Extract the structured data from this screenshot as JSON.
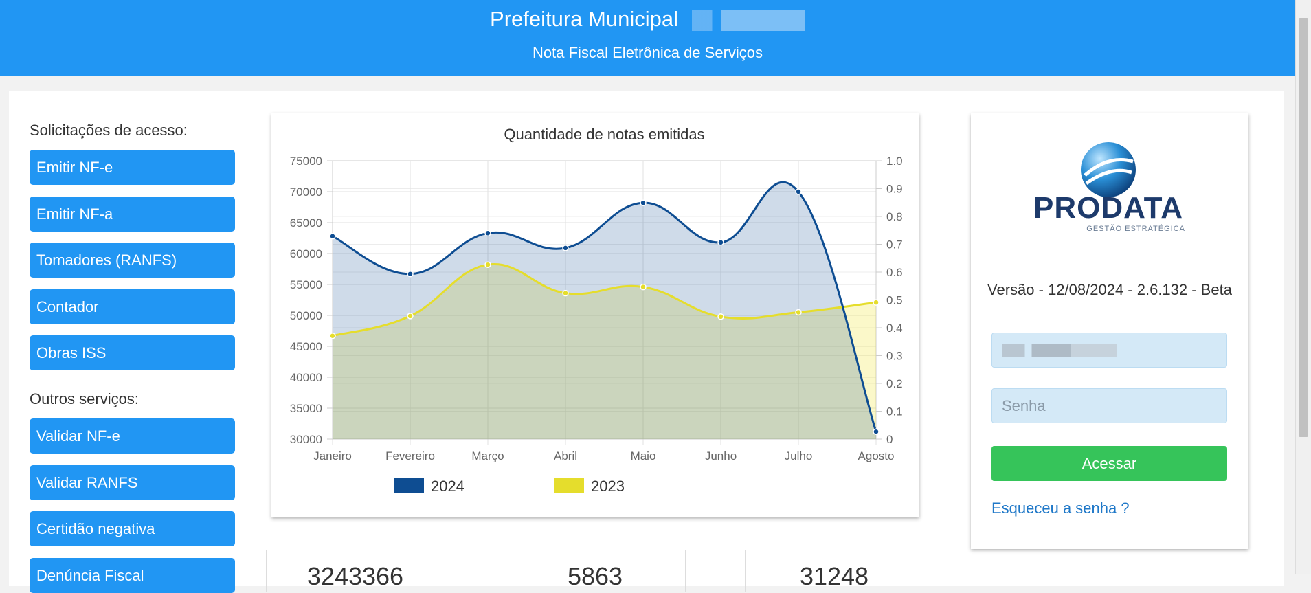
{
  "header": {
    "title": "Prefeitura Municipal",
    "subtitle": "Nota Fiscal Eletrônica de Serviços"
  },
  "menu": {
    "sections": [
      {
        "title": "Solicitações de acesso:",
        "items": [
          "Emitir NF-e",
          "Emitir NF-a",
          "Tomadores (RANFS)",
          "Contador",
          "Obras ISS"
        ]
      },
      {
        "title": "Outros serviços:",
        "items": [
          "Validar NF-e",
          "Validar RANFS",
          "Certidão negativa",
          "Denúncia Fiscal"
        ]
      }
    ]
  },
  "chart_data": {
    "type": "line",
    "title": "Quantidade de notas emitidas",
    "categories": [
      "Janeiro",
      "Fevereiro",
      "Março",
      "Abril",
      "Maio",
      "Junho",
      "Julho",
      "Agosto"
    ],
    "series": [
      {
        "name": "2024",
        "color": "#0e4d92",
        "values": [
          62800,
          56700,
          63300,
          60900,
          68200,
          61800,
          70000,
          31200
        ]
      },
      {
        "name": "2023",
        "color": "#e5dd2c",
        "values": [
          46700,
          49900,
          58200,
          53600,
          54600,
          49800,
          50500,
          52100
        ]
      }
    ],
    "ylim": [
      30000,
      75000
    ],
    "yticks": [
      30000,
      35000,
      40000,
      45000,
      50000,
      55000,
      60000,
      65000,
      70000,
      75000
    ],
    "y2lim": [
      0,
      1
    ],
    "y2ticks": [
      0,
      0.1,
      0.2,
      0.3,
      0.4,
      0.5,
      0.6,
      0.7,
      0.8,
      0.9,
      {
        "value": 1,
        "label": "1.0"
      }
    ],
    "grid": true,
    "legend": "bottom"
  },
  "login": {
    "logo": "PRODATA",
    "logo_tagline": "GESTÃO ESTRATÉGICA",
    "version": "Versão - 12/08/2024 - 2.6.132 - Beta",
    "password_placeholder": "Senha",
    "button": "Acessar",
    "forgot": "Esqueceu a senha ?"
  },
  "stats": [
    "3243366",
    "5863",
    "31248"
  ]
}
